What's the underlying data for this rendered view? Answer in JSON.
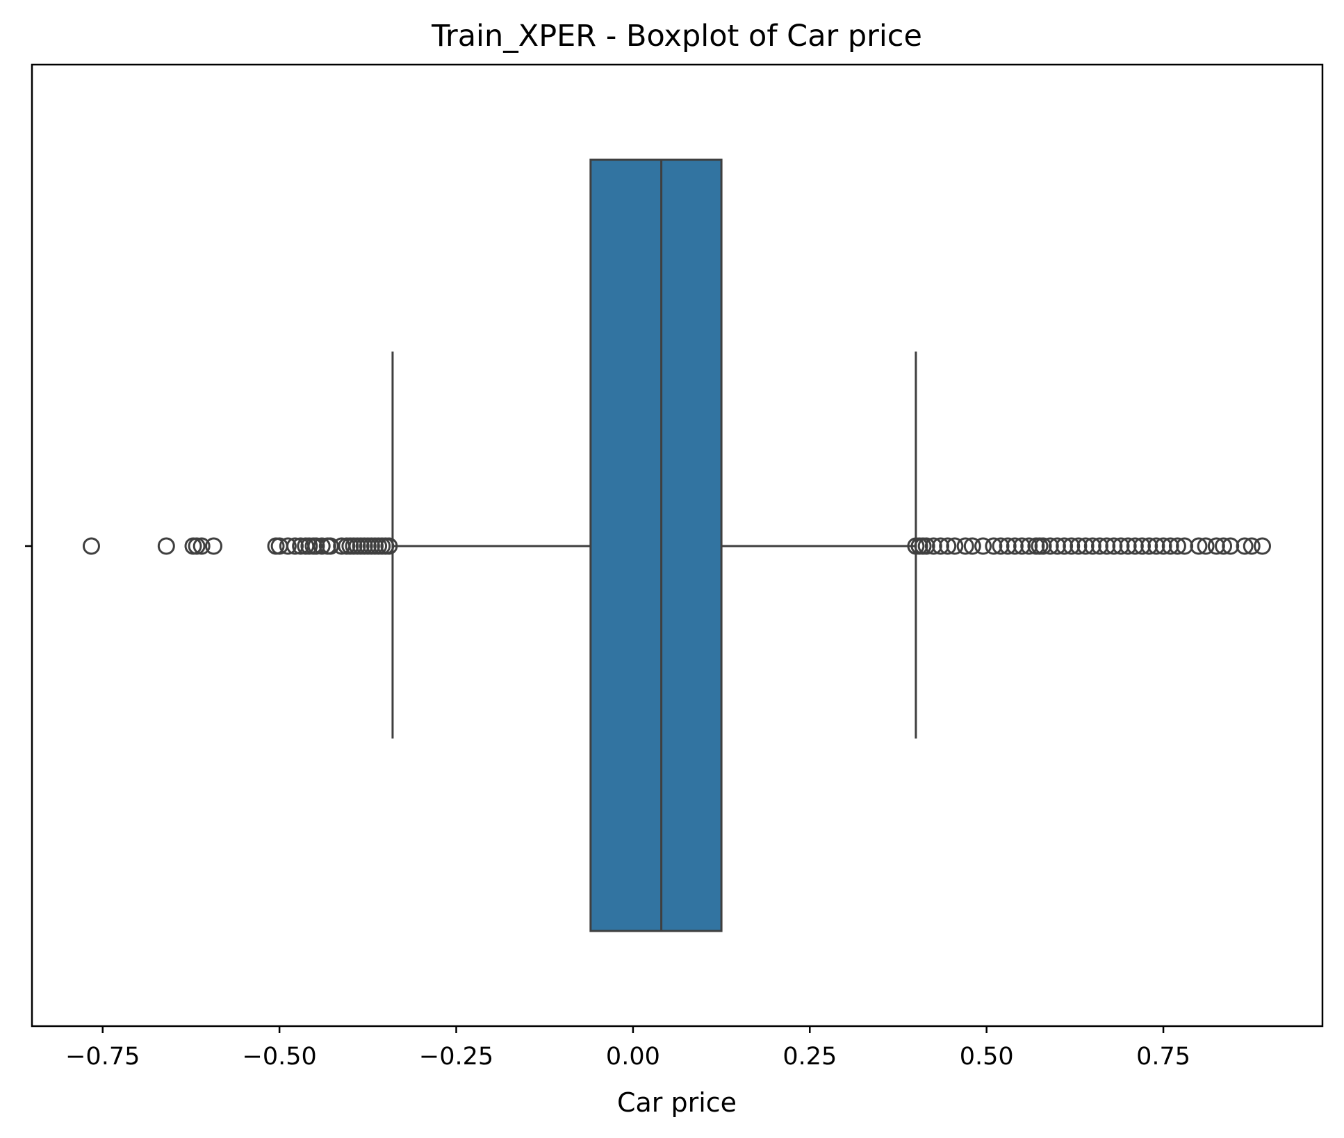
{
  "chart_data": {
    "type": "boxplot",
    "title": "Train_XPER - Boxplot of Car price",
    "xlabel": "Car price",
    "ylabel": "",
    "xlim": [
      -0.85,
      0.975
    ],
    "xticks": [
      -0.75,
      -0.5,
      -0.25,
      0.0,
      0.25,
      0.5,
      0.75
    ],
    "xtick_labels": [
      "−0.75",
      "−0.50",
      "−0.25",
      "0.00",
      "0.25",
      "0.50",
      "0.75"
    ],
    "grid": false,
    "box": {
      "q1": -0.06,
      "median": 0.04,
      "q3": 0.125,
      "whisker_low": -0.34,
      "whisker_high": 0.4
    },
    "outliers": [
      -0.766,
      -0.66,
      -0.622,
      -0.617,
      -0.61,
      -0.593,
      -0.505,
      -0.5,
      -0.488,
      -0.478,
      -0.47,
      -0.463,
      -0.458,
      -0.452,
      -0.448,
      -0.44,
      -0.432,
      -0.428,
      -0.412,
      -0.405,
      -0.4,
      -0.395,
      -0.39,
      -0.385,
      -0.38,
      -0.375,
      -0.37,
      -0.365,
      -0.36,
      -0.355,
      -0.35,
      -0.345,
      0.4,
      0.405,
      0.41,
      0.415,
      0.425,
      0.435,
      0.445,
      0.455,
      0.47,
      0.48,
      0.495,
      0.51,
      0.52,
      0.53,
      0.54,
      0.55,
      0.56,
      0.57,
      0.575,
      0.58,
      0.59,
      0.6,
      0.61,
      0.62,
      0.63,
      0.64,
      0.65,
      0.66,
      0.67,
      0.68,
      0.69,
      0.7,
      0.71,
      0.72,
      0.73,
      0.74,
      0.75,
      0.76,
      0.77,
      0.78,
      0.8,
      0.81,
      0.825,
      0.835,
      0.845,
      0.865,
      0.875,
      0.89
    ],
    "colors": {
      "box_fill": "#3274a1",
      "line": "#3f3f3f",
      "outlier_edge": "#3f3f3f",
      "axes": "#000000"
    }
  }
}
